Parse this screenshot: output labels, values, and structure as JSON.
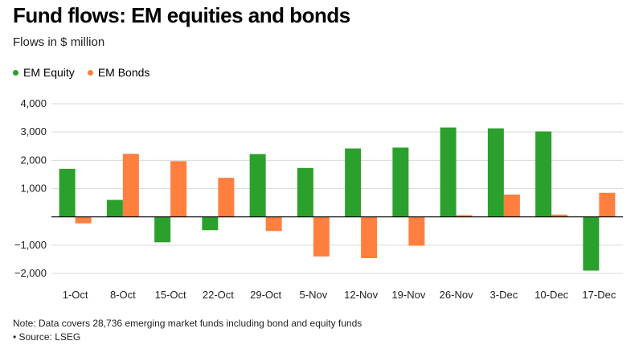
{
  "title": "Fund flows: EM equities and bonds",
  "subtitle": "Flows in $ million",
  "note": "Note: Data covers 28,736 emerging market funds including bond and equity funds",
  "source": "• Source: LSEG",
  "chart_data": {
    "type": "bar",
    "categories": [
      "1-Oct",
      "8-Oct",
      "15-Oct",
      "22-Oct",
      "29-Oct",
      "5-Nov",
      "12-Nov",
      "19-Nov",
      "26-Nov",
      "3-Dec",
      "10-Dec",
      "17-Dec"
    ],
    "series": [
      {
        "name": "EM Equity",
        "color": "#2ca02c",
        "values": [
          1700,
          600,
          -900,
          -470,
          2220,
          1730,
          2420,
          2450,
          3160,
          3130,
          3020,
          -1900
        ]
      },
      {
        "name": "EM Bonds",
        "color": "#ff7f3f",
        "values": [
          -230,
          2230,
          1970,
          1380,
          -500,
          -1400,
          -1460,
          -1020,
          60,
          790,
          80,
          850
        ]
      }
    ],
    "yticks": [
      -2000,
      -1000,
      0,
      1000,
      2000,
      3000,
      4000
    ],
    "ytick_labels": [
      "−2,000",
      "−1,000",
      "",
      "1,000",
      "2,000",
      "3,000",
      "4,000"
    ],
    "ylim": [
      -2000,
      4000
    ],
    "grid": true,
    "legend_position": "top-left"
  }
}
